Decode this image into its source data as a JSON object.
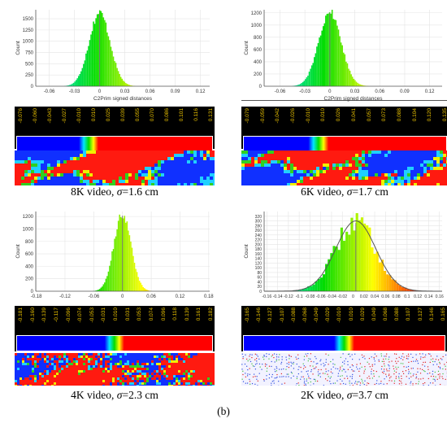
{
  "figure_label": "(b)",
  "chart_data": [
    {
      "type": "bar",
      "panel": "8K",
      "caption": {
        "prefix": "8K video, ",
        "sigma_symbol": "σ",
        "value": "=1.6 cm"
      },
      "xlabel": "C2Prim signed distances",
      "ylabel": "Count",
      "xlim": [
        -0.076,
        0.131
      ],
      "ylim": [
        0,
        1700
      ],
      "xticks": [
        "-0.06",
        "-0.03",
        "0",
        "0.03",
        "0.06",
        "0.09",
        "0.12"
      ],
      "yticks": [
        "0",
        "250",
        "500",
        "750",
        "1000",
        "1250",
        "1500"
      ],
      "distribution": {
        "center": 0.0,
        "std": 0.0125,
        "peak": 1650
      },
      "scale_values": [
        "-0.076",
        "-0.060",
        "-0.043",
        "-0.027",
        "-0.010",
        "0.010",
        "0.025",
        "0.039",
        "0.055",
        "0.070",
        "0.086",
        "0.101",
        "0.116",
        "0.131"
      ],
      "gaussian_fit": false
    },
    {
      "type": "bar",
      "panel": "6K",
      "caption": {
        "prefix": "6K video, ",
        "sigma_symbol": "σ",
        "value": "=1.7 cm"
      },
      "xlabel": "C2Prim signed distances",
      "ylabel": "Count",
      "xlim": [
        -0.079,
        0.135
      ],
      "ylim": [
        0,
        1250
      ],
      "xticks": [
        "-0.06",
        "-0.03",
        "0",
        "0.03",
        "0.06",
        "0.09",
        "0.12"
      ],
      "yticks": [
        "0",
        "200",
        "400",
        "600",
        "800",
        "1000",
        "1200"
      ],
      "distribution": {
        "center": 0.0,
        "std": 0.0135,
        "peak": 1230
      },
      "scale_values": [
        "-0.079",
        "-0.059",
        "-0.042",
        "-0.026",
        "-0.010",
        "0.010",
        "0.026",
        "0.041",
        "0.057",
        "0.073",
        "0.088",
        "0.104",
        "0.120",
        "0.135"
      ],
      "gaussian_fit": false
    },
    {
      "type": "bar",
      "panel": "4K",
      "caption": {
        "prefix": "4K video, ",
        "sigma_symbol": "σ",
        "value": "=2.3 cm"
      },
      "xlabel": "",
      "ylabel": "Count",
      "xlim": [
        -0.181,
        0.182
      ],
      "ylim": [
        0,
        1280
      ],
      "xticks": [
        "-0.18",
        "-0.12",
        "-0.06",
        "0",
        "0.06",
        "0.12",
        "0.18"
      ],
      "yticks": [
        "0",
        "200",
        "400",
        "600",
        "800",
        "1000",
        "1200"
      ],
      "distribution": {
        "center": 0.0,
        "std": 0.018,
        "peak": 1250
      },
      "scale_values": [
        "-0.181",
        "-0.160",
        "-0.139",
        "-0.117",
        "-0.096",
        "-0.074",
        "-0.053",
        "-0.031",
        "0.010",
        "0.031",
        "0.053",
        "0.074",
        "0.096",
        "0.118",
        "0.139",
        "0.161",
        "0.182"
      ],
      "gaussian_fit": false
    },
    {
      "type": "bar",
      "panel": "2K",
      "caption": {
        "prefix": "2K video, ",
        "sigma_symbol": "σ",
        "value": "=3.7 cm"
      },
      "xlabel": "",
      "ylabel": "Count",
      "xlim": [
        -0.165,
        0.165
      ],
      "ylim": [
        0,
        340
      ],
      "xticks": [
        "-0.16",
        "-0.14",
        "-0.12",
        "-0.1",
        "-0.08",
        "-0.06",
        "-0.04",
        "-0.02",
        "0",
        "0.02",
        "0.04",
        "0.06",
        "0.08",
        "0.1",
        "0.12",
        "0.14",
        "0.16"
      ],
      "yticks": [
        "0",
        "20",
        "40",
        "60",
        "80",
        "100",
        "120",
        "140",
        "160",
        "180",
        "200",
        "220",
        "240",
        "260",
        "280",
        "300",
        "320"
      ],
      "distribution": {
        "center": 0.005,
        "std": 0.037,
        "peak": 300
      },
      "scale_values": [
        "-0.165",
        "-0.146",
        "-0.127",
        "-0.107",
        "-0.088",
        "-0.068",
        "-0.049",
        "-0.029",
        "-0.010",
        "0.010",
        "0.029",
        "0.049",
        "0.068",
        "0.088",
        "0.107",
        "0.127",
        "0.146",
        "0.165"
      ],
      "gaussian_fit": true
    }
  ]
}
